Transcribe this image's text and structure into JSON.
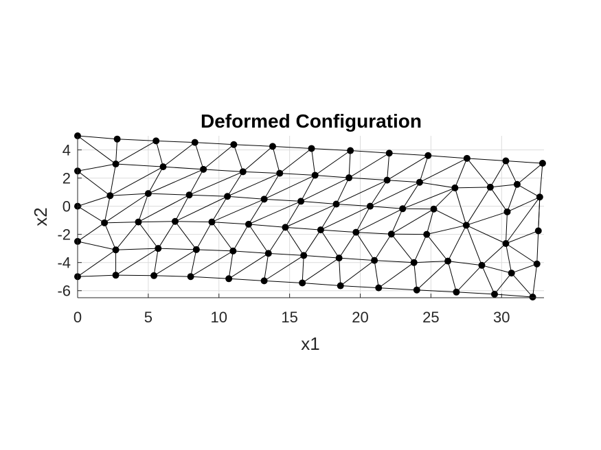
{
  "chart_data": {
    "type": "scatter",
    "title": "Deformed Configuration",
    "xlabel": "x1",
    "ylabel": "x2",
    "xlim": [
      0,
      33
    ],
    "ylim": [
      -6.5,
      5
    ],
    "xticks": [
      0,
      5,
      10,
      15,
      20,
      25,
      30
    ],
    "yticks": [
      -6,
      -4,
      -2,
      0,
      2,
      4
    ],
    "grid": true,
    "nodes": [
      [
        0,
        5
      ],
      [
        2.8,
        4.77
      ],
      [
        5.55,
        4.64
      ],
      [
        8.3,
        4.53
      ],
      [
        11.05,
        4.38
      ],
      [
        13.8,
        4.25
      ],
      [
        16.55,
        4.1
      ],
      [
        19.3,
        3.95
      ],
      [
        22.05,
        3.77
      ],
      [
        24.8,
        3.6
      ],
      [
        27.55,
        3.4
      ],
      [
        30.3,
        3.22
      ],
      [
        32.9,
        3.05
      ],
      [
        0,
        2.5
      ],
      [
        2.7,
        3.0
      ],
      [
        6.05,
        2.8
      ],
      [
        8.9,
        2.62
      ],
      [
        11.7,
        2.45
      ],
      [
        14.3,
        2.34
      ],
      [
        16.8,
        2.2
      ],
      [
        19.2,
        2.02
      ],
      [
        21.9,
        1.85
      ],
      [
        24.2,
        1.7
      ],
      [
        26.7,
        1.3
      ],
      [
        29.2,
        1.35
      ],
      [
        31.1,
        1.55
      ],
      [
        0,
        0
      ],
      [
        2.3,
        0.75
      ],
      [
        5.0,
        0.9
      ],
      [
        7.9,
        0.8
      ],
      [
        10.6,
        0.7
      ],
      [
        13.2,
        0.5
      ],
      [
        15.8,
        0.35
      ],
      [
        18.3,
        0.15
      ],
      [
        20.7,
        0.0
      ],
      [
        23.0,
        -0.18
      ],
      [
        25.2,
        -0.2
      ],
      [
        30.4,
        -0.4
      ],
      [
        32.7,
        0.65
      ],
      [
        1.9,
        -1.18
      ],
      [
        4.3,
        -1.12
      ],
      [
        6.9,
        -1.08
      ],
      [
        9.5,
        -1.12
      ],
      [
        12.1,
        -1.28
      ],
      [
        14.7,
        -1.5
      ],
      [
        17.2,
        -1.68
      ],
      [
        19.7,
        -1.85
      ],
      [
        22.2,
        -1.98
      ],
      [
        24.7,
        -2.0
      ],
      [
        27.5,
        -1.35
      ],
      [
        32.6,
        -1.75
      ],
      [
        0,
        -2.5
      ],
      [
        2.7,
        -3.1
      ],
      [
        5.7,
        -3.0
      ],
      [
        8.4,
        -3.08
      ],
      [
        11.0,
        -3.18
      ],
      [
        13.5,
        -3.35
      ],
      [
        16.0,
        -3.5
      ],
      [
        18.5,
        -3.68
      ],
      [
        21.0,
        -3.85
      ],
      [
        23.8,
        -4.0
      ],
      [
        26.2,
        -3.9
      ],
      [
        28.6,
        -4.2
      ],
      [
        30.3,
        -2.65
      ],
      [
        32.5,
        -4.1
      ],
      [
        0,
        -5
      ],
      [
        2.7,
        -4.9
      ],
      [
        5.4,
        -4.93
      ],
      [
        8.0,
        -5.0
      ],
      [
        10.7,
        -5.15
      ],
      [
        13.2,
        -5.3
      ],
      [
        15.9,
        -5.45
      ],
      [
        18.6,
        -5.65
      ],
      [
        21.3,
        -5.8
      ],
      [
        24.0,
        -5.95
      ],
      [
        26.8,
        -6.1
      ],
      [
        29.5,
        -6.25
      ],
      [
        30.7,
        -4.75
      ],
      [
        32.2,
        -6.45
      ]
    ],
    "edges": [
      [
        0,
        1
      ],
      [
        1,
        2
      ],
      [
        2,
        3
      ],
      [
        3,
        4
      ],
      [
        4,
        5
      ],
      [
        5,
        6
      ],
      [
        6,
        7
      ],
      [
        7,
        8
      ],
      [
        8,
        9
      ],
      [
        9,
        10
      ],
      [
        10,
        11
      ],
      [
        11,
        12
      ],
      [
        13,
        14
      ],
      [
        14,
        15
      ],
      [
        15,
        16
      ],
      [
        16,
        17
      ],
      [
        17,
        18
      ],
      [
        18,
        19
      ],
      [
        19,
        20
      ],
      [
        20,
        21
      ],
      [
        21,
        22
      ],
      [
        22,
        23
      ],
      [
        23,
        24
      ],
      [
        24,
        25
      ],
      [
        25,
        12
      ],
      [
        26,
        27
      ],
      [
        27,
        28
      ],
      [
        28,
        29
      ],
      [
        29,
        30
      ],
      [
        30,
        31
      ],
      [
        31,
        32
      ],
      [
        32,
        33
      ],
      [
        33,
        34
      ],
      [
        34,
        35
      ],
      [
        35,
        36
      ],
      [
        36,
        49
      ],
      [
        49,
        37
      ],
      [
        37,
        38
      ],
      [
        39,
        40
      ],
      [
        40,
        41
      ],
      [
        41,
        42
      ],
      [
        42,
        43
      ],
      [
        43,
        44
      ],
      [
        44,
        45
      ],
      [
        45,
        46
      ],
      [
        46,
        47
      ],
      [
        47,
        48
      ],
      [
        48,
        49
      ],
      [
        49,
        63
      ],
      [
        63,
        50
      ],
      [
        50,
        38
      ],
      [
        51,
        52
      ],
      [
        52,
        53
      ],
      [
        53,
        54
      ],
      [
        54,
        55
      ],
      [
        55,
        56
      ],
      [
        56,
        57
      ],
      [
        57,
        58
      ],
      [
        58,
        59
      ],
      [
        59,
        60
      ],
      [
        60,
        61
      ],
      [
        61,
        62
      ],
      [
        62,
        63
      ],
      [
        63,
        64
      ],
      [
        65,
        66
      ],
      [
        66,
        67
      ],
      [
        67,
        68
      ],
      [
        68,
        69
      ],
      [
        69,
        70
      ],
      [
        70,
        71
      ],
      [
        71,
        72
      ],
      [
        72,
        73
      ],
      [
        73,
        74
      ],
      [
        74,
        75
      ],
      [
        75,
        76
      ],
      [
        76,
        78
      ],
      [
        0,
        13
      ],
      [
        13,
        26
      ],
      [
        26,
        51
      ],
      [
        51,
        65
      ],
      [
        12,
        38
      ],
      [
        38,
        50
      ],
      [
        50,
        64
      ],
      [
        64,
        78
      ],
      [
        0,
        14
      ],
      [
        1,
        14
      ],
      [
        14,
        2
      ],
      [
        2,
        15
      ],
      [
        15,
        3
      ],
      [
        3,
        16
      ],
      [
        16,
        4
      ],
      [
        4,
        17
      ],
      [
        17,
        5
      ],
      [
        5,
        18
      ],
      [
        18,
        6
      ],
      [
        6,
        19
      ],
      [
        19,
        7
      ],
      [
        7,
        20
      ],
      [
        20,
        8
      ],
      [
        8,
        21
      ],
      [
        21,
        9
      ],
      [
        9,
        22
      ],
      [
        22,
        10
      ],
      [
        10,
        23
      ],
      [
        10,
        24
      ],
      [
        24,
        11
      ],
      [
        11,
        25
      ],
      [
        13,
        27
      ],
      [
        14,
        27
      ],
      [
        27,
        15
      ],
      [
        15,
        28
      ],
      [
        28,
        16
      ],
      [
        16,
        29
      ],
      [
        29,
        17
      ],
      [
        17,
        30
      ],
      [
        30,
        18
      ],
      [
        18,
        31
      ],
      [
        31,
        19
      ],
      [
        19,
        32
      ],
      [
        32,
        20
      ],
      [
        20,
        33
      ],
      [
        33,
        21
      ],
      [
        21,
        34
      ],
      [
        34,
        22
      ],
      [
        22,
        35
      ],
      [
        35,
        23
      ],
      [
        23,
        36
      ],
      [
        23,
        49
      ],
      [
        24,
        49
      ],
      [
        24,
        37
      ],
      [
        25,
        37
      ],
      [
        25,
        38
      ],
      [
        26,
        39
      ],
      [
        27,
        39
      ],
      [
        39,
        28
      ],
      [
        28,
        40
      ],
      [
        40,
        29
      ],
      [
        29,
        41
      ],
      [
        41,
        30
      ],
      [
        30,
        42
      ],
      [
        42,
        31
      ],
      [
        31,
        43
      ],
      [
        43,
        32
      ],
      [
        32,
        44
      ],
      [
        44,
        33
      ],
      [
        33,
        45
      ],
      [
        45,
        34
      ],
      [
        34,
        46
      ],
      [
        46,
        35
      ],
      [
        35,
        47
      ],
      [
        47,
        36
      ],
      [
        36,
        48
      ],
      [
        51,
        39
      ],
      [
        39,
        52
      ],
      [
        52,
        40
      ],
      [
        40,
        53
      ],
      [
        53,
        41
      ],
      [
        41,
        54
      ],
      [
        54,
        42
      ],
      [
        42,
        55
      ],
      [
        55,
        43
      ],
      [
        43,
        56
      ],
      [
        56,
        44
      ],
      [
        44,
        57
      ],
      [
        57,
        45
      ],
      [
        45,
        58
      ],
      [
        58,
        46
      ],
      [
        46,
        59
      ],
      [
        59,
        47
      ],
      [
        47,
        60
      ],
      [
        60,
        48
      ],
      [
        48,
        61
      ],
      [
        61,
        49
      ],
      [
        49,
        62
      ],
      [
        37,
        63
      ],
      [
        38,
        63
      ],
      [
        65,
        52
      ],
      [
        52,
        66
      ],
      [
        66,
        53
      ],
      [
        53,
        67
      ],
      [
        67,
        54
      ],
      [
        54,
        68
      ],
      [
        68,
        55
      ],
      [
        55,
        69
      ],
      [
        69,
        56
      ],
      [
        56,
        70
      ],
      [
        70,
        57
      ],
      [
        57,
        71
      ],
      [
        71,
        58
      ],
      [
        58,
        72
      ],
      [
        72,
        59
      ],
      [
        59,
        73
      ],
      [
        73,
        60
      ],
      [
        60,
        74
      ],
      [
        74,
        61
      ],
      [
        61,
        75
      ],
      [
        75,
        62
      ],
      [
        62,
        76
      ],
      [
        62,
        77
      ],
      [
        63,
        77
      ],
      [
        77,
        64
      ],
      [
        77,
        76
      ],
      [
        77,
        78
      ]
    ]
  }
}
